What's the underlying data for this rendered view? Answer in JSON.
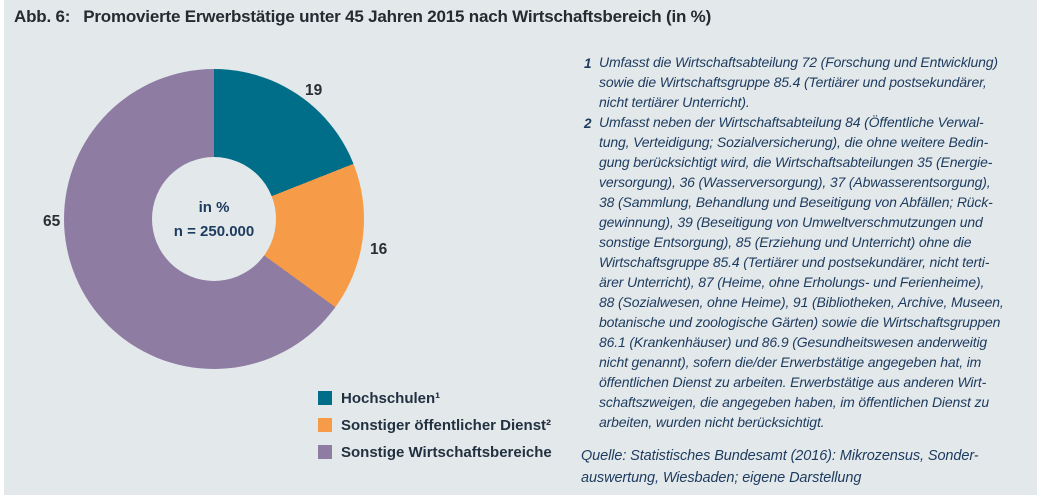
{
  "title": {
    "label": "Abb. 6:",
    "text": "Promovierte Erwerbstätige unter 45 Jahren 2015 nach Wirtschaftsbereich (in %)"
  },
  "colors": {
    "panel_background": "#e3e8eb",
    "text_navy": "#1d3b5e",
    "title_text": "#262a31"
  },
  "chart_data": {
    "type": "pie",
    "subtype": "donut",
    "title": "Promovierte Erwerbstätige unter 45 Jahren 2015 nach Wirtschaftsbereich (in %)",
    "categories": [
      "Hochschulen¹",
      "Sonstiger öffentlicher Dienst²",
      "Sonstige Wirtschaftsbereiche"
    ],
    "values": [
      19,
      16,
      65
    ],
    "colors": [
      "#006e88",
      "#f69c49",
      "#8e7ca3"
    ],
    "unit": "%",
    "start_angle_deg": 0,
    "direction": "clockwise",
    "center_label_line1": "in %",
    "center_label_line2": "n = 250.000",
    "legend_position": "below-left"
  },
  "footnotes": [
    {
      "marker": "1",
      "text": "Umfasst die Wirtschaftsabteilung 72 (Forschung und Entwicklung)\nsowie die Wirtschaftsgruppe 85.4 (Tertiärer und postsekundärer,\nnicht tertiärer Unterricht)."
    },
    {
      "marker": "2",
      "text": "Umfasst neben der Wirtschaftsabteilung 84 (Öffentliche Verwal-\ntung, Verteidigung; Sozialversicherung), die ohne weitere Bedin-\ngung berücksichtigt wird, die Wirtschaftsabteilungen 35 (Energie-\nversorgung), 36 (Wasserversorgung), 37 (Abwasserentsorgung),\n38 (Sammlung, Behandlung und Beseitigung von Abfällen; Rück-\ngewinnung), 39 (Beseitigung von Umweltverschmutzungen und\nsonstige Entsorgung), 85 (Erziehung und Unterricht) ohne die\nWirtschaftsgruppe 85.4 (Tertiärer und postsekundärer, nicht terti-\närer Unterricht), 87 (Heime, ohne Erholungs- und Ferienheime),\n88 (Sozialwesen, ohne Heime), 91 (Bibliotheken, Archive, Museen,\nbotanische und zoologische Gärten) sowie die Wirtschaftsgruppen\n86.1 (Krankenhäuser) und 86.9 (Gesundheitswesen anderweitig\nnicht genannt), sofern die/der Erwerbstätige angegeben hat, im\nöffentlichen Dienst zu arbeiten. Erwerbstätige aus anderen Wirt-\nschaftszweigen, die angegeben haben, im öffentlichen Dienst zu\narbeiten, wurden nicht berücksichtigt."
    }
  ],
  "source": "Quelle: Statistisches Bundesamt (2016): Mikrozensus, Sonder-\nauswertung, Wiesbaden; eigene Darstellung"
}
